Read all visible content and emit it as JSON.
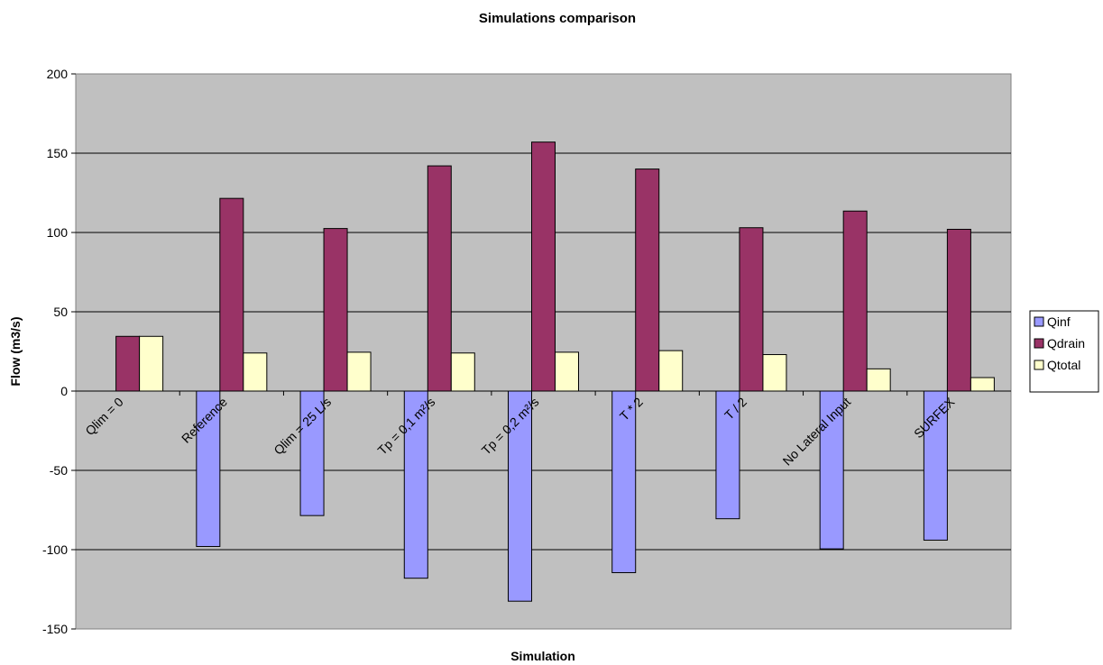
{
  "chart_data": {
    "type": "bar",
    "title": "Simulations comparison",
    "xlabel": "Simulation",
    "ylabel": "Flow (m3/s)",
    "ylim": [
      -150,
      200
    ],
    "yticks": [
      -150,
      -100,
      -50,
      0,
      50,
      100,
      150,
      200
    ],
    "grid": true,
    "legend_position": "right",
    "plot_background": "#C0C0C0",
    "categories": [
      "Qlim = 0",
      "Reference",
      "Qlim = 25 L/s",
      "Tp = 0,1 m²/s",
      "Tp = 0,2 m²/s",
      "T * 2",
      "T / 2",
      "No Lateral Input",
      "SURFEX"
    ],
    "series": [
      {
        "name": "Qinf",
        "color": "#9999FF",
        "values": [
          0,
          -98,
          -78.5,
          -118,
          -132.5,
          -114.5,
          -80.5,
          -99.5,
          -94
        ]
      },
      {
        "name": "Qdrain",
        "color": "#993366",
        "values": [
          34.5,
          121.5,
          102.5,
          142,
          157,
          140,
          103,
          113.5,
          102
        ]
      },
      {
        "name": "Qtotal",
        "color": "#FFFFCC",
        "values": [
          34.5,
          24,
          24.5,
          24,
          24.5,
          25.5,
          23,
          14,
          8.5
        ]
      }
    ]
  }
}
